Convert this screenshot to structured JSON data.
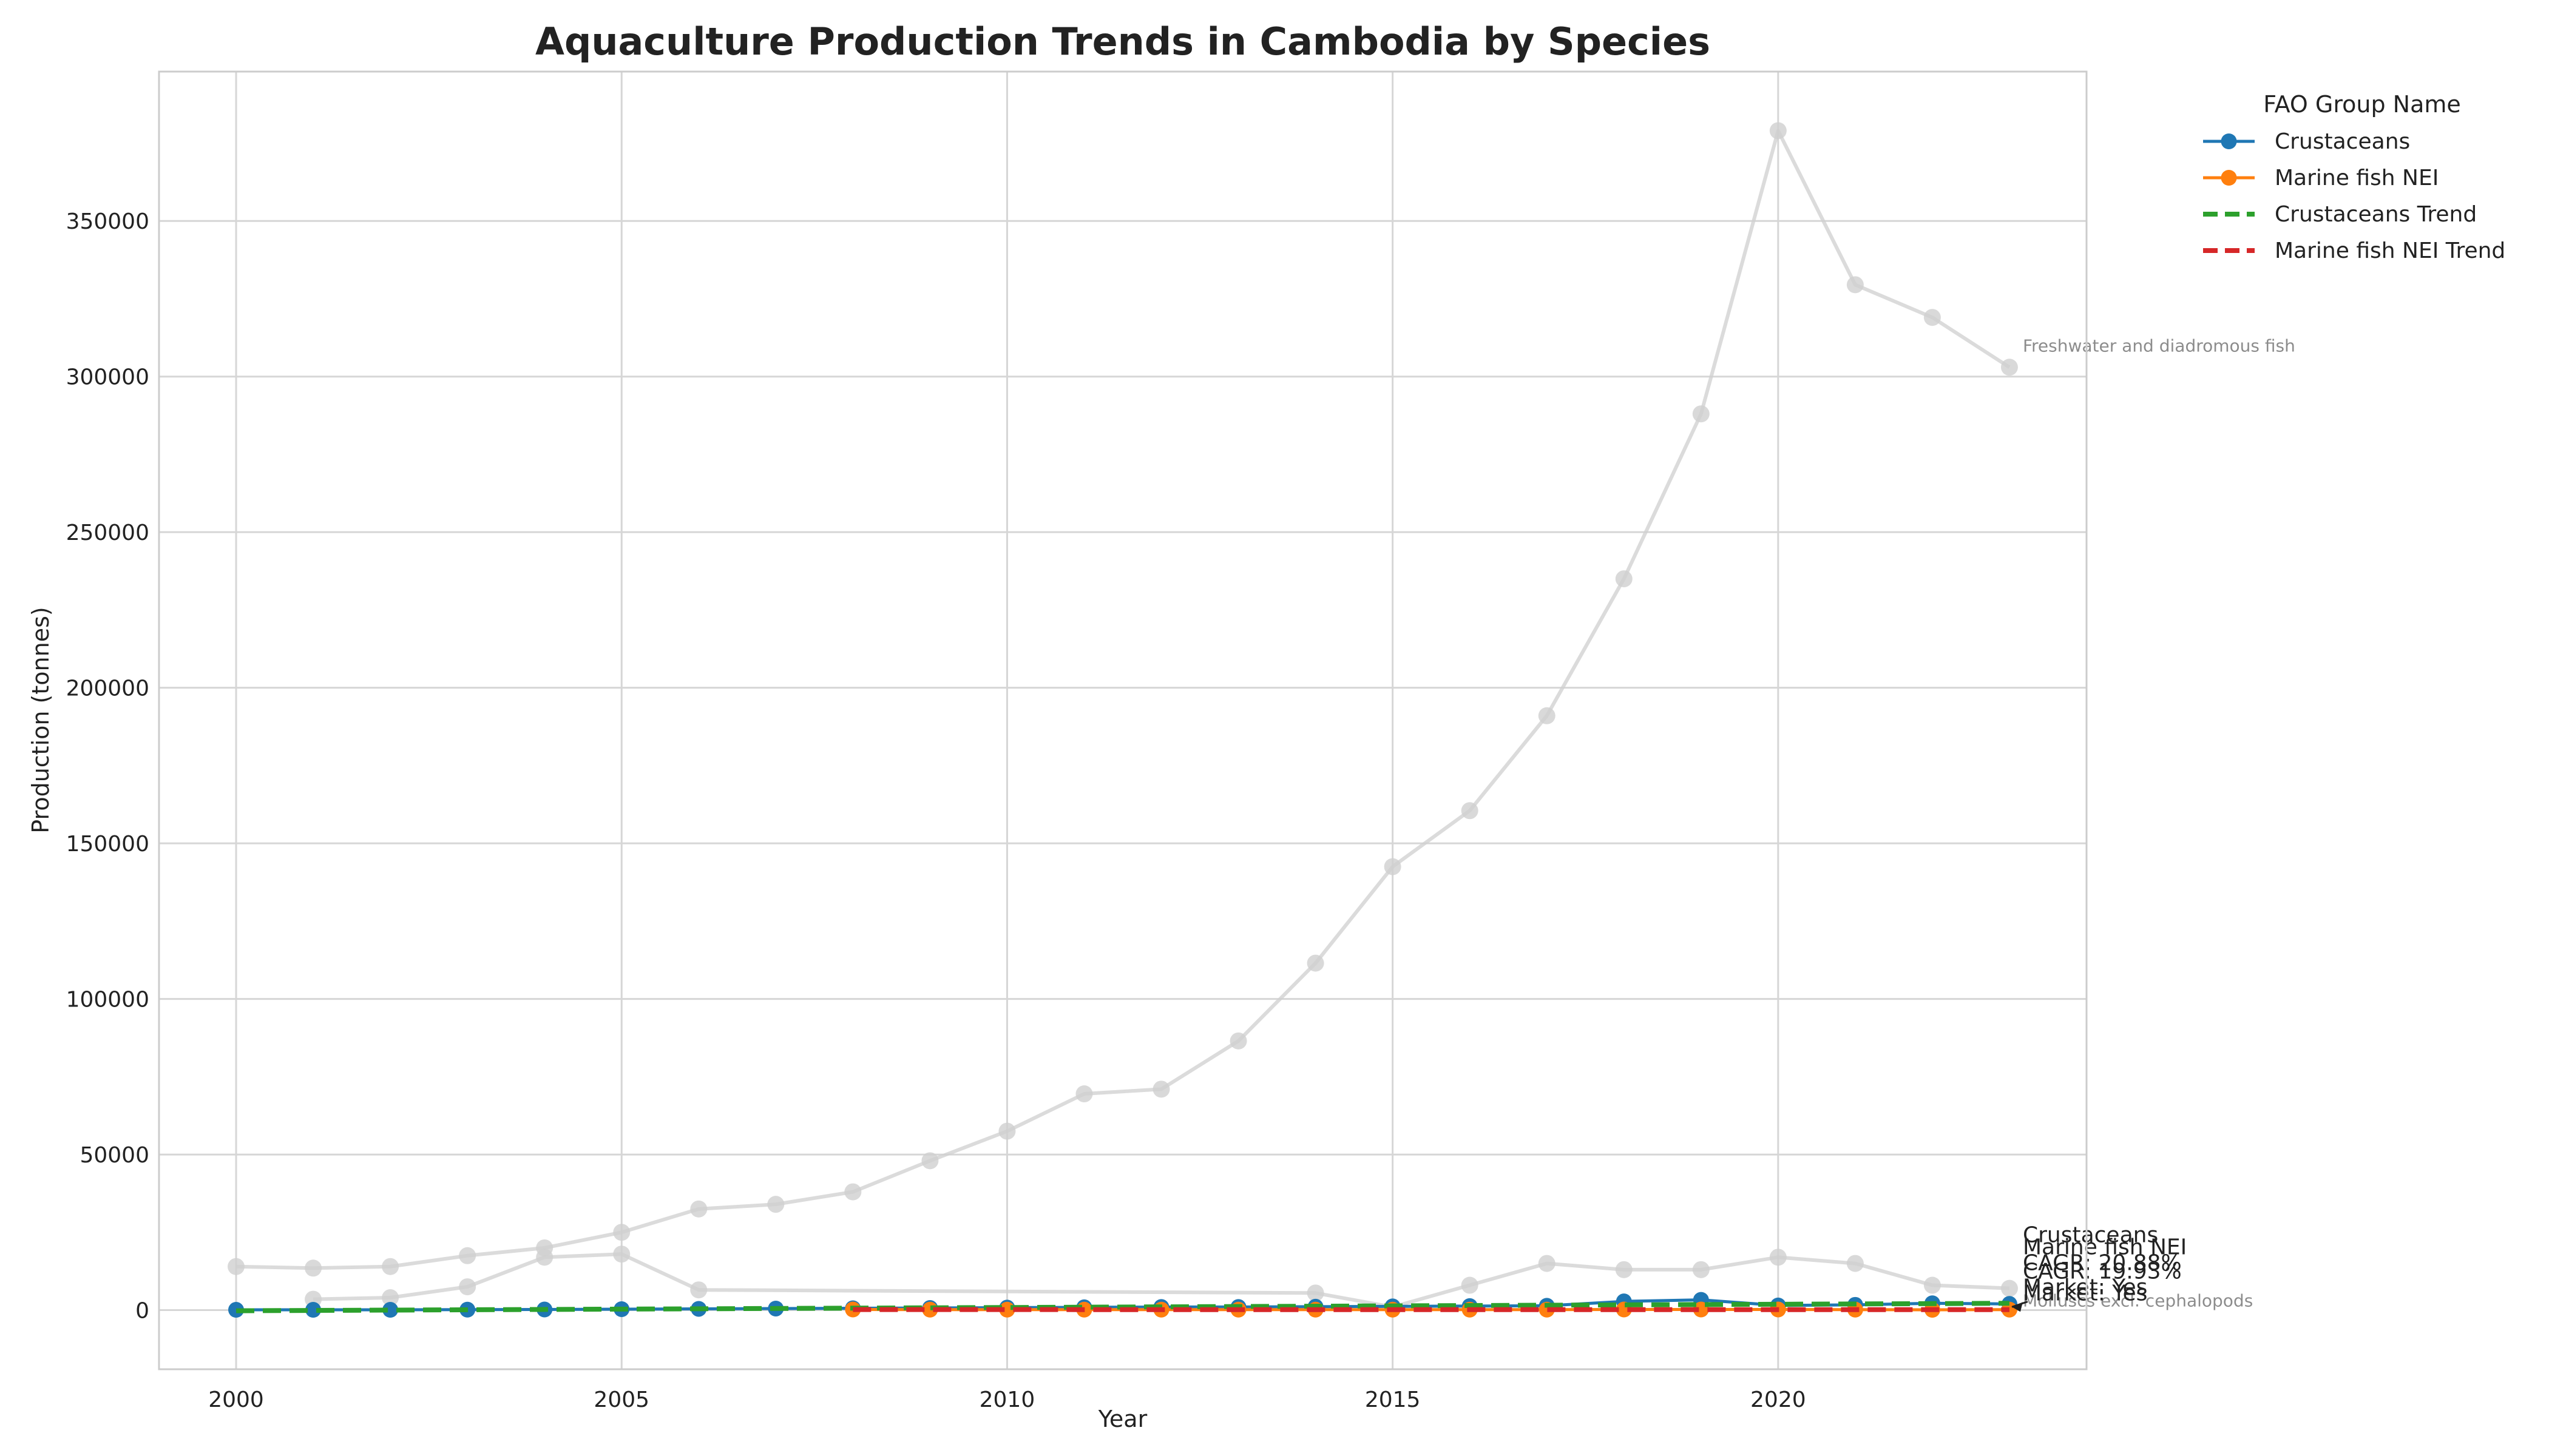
{
  "chart_data": {
    "type": "line",
    "title": "Aquaculture Production Trends in Cambodia by Species",
    "xlabel": "Year",
    "ylabel": "Production (tonnes)",
    "xlim": [
      1999,
      2024
    ],
    "ylim": [
      -19000,
      398000
    ],
    "x_ticks": [
      2000,
      2005,
      2010,
      2015,
      2020
    ],
    "y_ticks": [
      0,
      50000,
      100000,
      150000,
      200000,
      250000,
      300000,
      350000
    ],
    "grid": true,
    "legend": {
      "title": "FAO Group Name",
      "placement": "outside-top-right",
      "entries": [
        "Crustaceans",
        "Marine fish NEI",
        "Crustaceans Trend",
        "Marine fish NEI Trend"
      ]
    },
    "background_series": [
      {
        "label": "Freshwater and diadromous fish",
        "x": [
          2000,
          2001,
          2002,
          2003,
          2004,
          2005,
          2006,
          2007,
          2008,
          2009,
          2010,
          2011,
          2012,
          2013,
          2014,
          2015,
          2016,
          2017,
          2018,
          2019,
          2020,
          2021,
          2022,
          2023
        ],
        "y": [
          14000,
          13500,
          14000,
          17500,
          20000,
          25000,
          32500,
          34000,
          38000,
          48000,
          57500,
          69500,
          71000,
          86500,
          111500,
          142500,
          160500,
          191000,
          235000,
          288000,
          379000,
          329500,
          319000,
          303000
        ]
      },
      {
        "label": "Molluscs excl. cephalopods",
        "x": [
          2001,
          2002,
          2003,
          2004,
          2005,
          2006,
          2014,
          2015,
          2016,
          2017,
          2018,
          2019,
          2020,
          2021,
          2022,
          2023
        ],
        "y": [
          3500,
          4000,
          7500,
          17000,
          18000,
          6500,
          5500,
          1000,
          8000,
          15000,
          13000,
          13000,
          17000,
          15000,
          8000,
          7000
        ]
      }
    ],
    "series": [
      {
        "name": "Crustaceans",
        "color": "#1f77b4",
        "style": "solid-marker",
        "x": [
          2000,
          2001,
          2002,
          2003,
          2004,
          2005,
          2006,
          2007,
          2008,
          2009,
          2010,
          2011,
          2012,
          2013,
          2014,
          2015,
          2016,
          2017,
          2018,
          2019,
          2020,
          2021,
          2022,
          2023
        ],
        "y": [
          100,
          100,
          100,
          150,
          200,
          300,
          400,
          500,
          600,
          700,
          800,
          900,
          1000,
          1000,
          1100,
          1200,
          1300,
          1400,
          2800,
          3300,
          1500,
          1700,
          2200,
          2000
        ]
      },
      {
        "name": "Marine fish NEI",
        "color": "#ff7f0e",
        "style": "solid-marker",
        "x": [
          2008,
          2009,
          2010,
          2011,
          2012,
          2013,
          2014,
          2015,
          2016,
          2017,
          2018,
          2019,
          2020,
          2021,
          2022,
          2023
        ],
        "y": [
          200,
          150,
          150,
          150,
          150,
          150,
          150,
          150,
          150,
          150,
          200,
          200,
          200,
          150,
          100,
          150
        ]
      },
      {
        "name": "Crustaceans Trend",
        "color": "#2ca02c",
        "style": "dashed",
        "x": [
          2000,
          2023
        ],
        "y": [
          -200,
          2200
        ]
      },
      {
        "name": "Marine fish NEI Trend",
        "color": "#d62728",
        "style": "dashed",
        "x": [
          2008,
          2023
        ],
        "y": [
          170,
          150
        ]
      }
    ],
    "annotations": [
      {
        "text": "Crustaceans",
        "line": 0
      },
      {
        "text": "Marine fish NEI",
        "line": 1
      },
      {
        "text": "CAGR: 20.88%",
        "line": 2
      },
      {
        "text": "CAGR: 19.93%",
        "line": 2
      },
      {
        "text": "Market: Yes",
        "line": 3
      },
      {
        "text": "Market: Yes",
        "line": 3
      }
    ]
  }
}
